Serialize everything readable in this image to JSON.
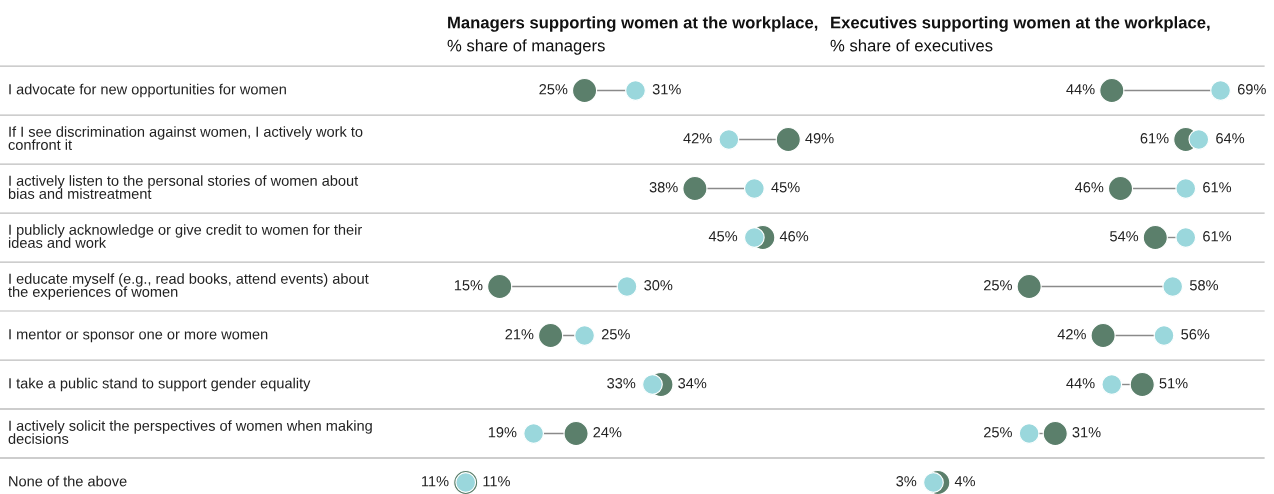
{
  "chart_data": [
    {
      "type": "scatter",
      "orientation": "horizontal",
      "title": "Managers supporting women at the workplace,",
      "subtitle": "% share of managers",
      "marker": "circle",
      "tick_labels": "y",
      "categories": [
        "I advocate for new opportunities for women",
        "If I see discrimination against women, I actively work to\nconfront it",
        "I actively listen to the personal stories of women about\nbias and mistreatment",
        "I publicly acknowledge or give credit to women for their\nideas and work",
        "I educate myself (e.g., read books, attend events) about\nthe experiences of women",
        "I mentor or sponsor one or more women",
        "I take a public stand to support gender equality",
        "I actively solicit the perspectives of women when making\ndecisions",
        "None of the above"
      ],
      "series": [
        {
          "color": "#5b7f6b",
          "values": [
            25,
            49,
            38,
            46,
            15,
            21,
            34,
            24,
            11
          ],
          "value_labels": [
            "25%",
            "49%",
            "38%",
            "46%",
            "15%",
            "21%",
            "34%",
            "24%",
            "11%"
          ]
        },
        {
          "color": "#9ad7dc",
          "values": [
            31,
            42,
            45,
            45,
            30,
            25,
            33,
            19,
            11
          ],
          "value_labels": [
            "31%",
            "42%",
            "45%",
            "45%",
            "30%",
            "25%",
            "33%",
            "19%",
            "11%"
          ]
        }
      ]
    },
    {
      "type": "scatter",
      "orientation": "horizontal",
      "title": "Executives supporting women at the workplace,",
      "subtitle": "% share of executives",
      "marker": "circle",
      "tick_labels": false,
      "categories": [
        null,
        null,
        null,
        null,
        null,
        null,
        null,
        null,
        null
      ],
      "series": [
        {
          "color": "#5b7f6b",
          "values": [
            44,
            61,
            46,
            54,
            25,
            42,
            51,
            31,
            4
          ],
          "value_labels": [
            "44%",
            "61%",
            "46%",
            "54%",
            "25%",
            "42%",
            "51%",
            "31%",
            "4%"
          ]
        },
        {
          "color": "#9ad7dc",
          "values": [
            69,
            64,
            61,
            61,
            58,
            56,
            44,
            25,
            3
          ],
          "value_labels": [
            "69%",
            "64%",
            "61%",
            "61%",
            "58%",
            "56%",
            "44%",
            "25%",
            "3%"
          ]
        }
      ]
    }
  ]
}
